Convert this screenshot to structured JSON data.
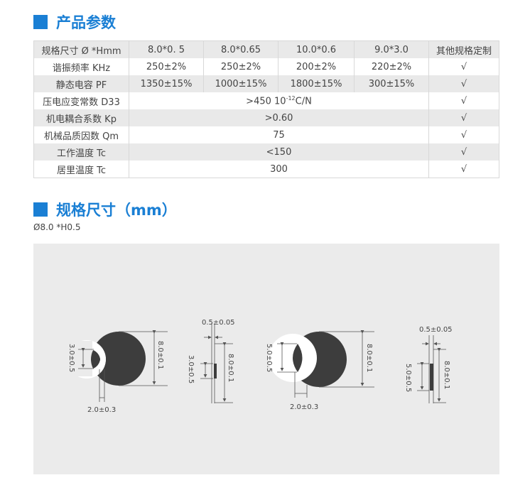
{
  "section1": {
    "title": "产品参数"
  },
  "table": {
    "header": [
      "规格尺寸 Ø *Hmm",
      "8.0*0. 5",
      "8.0*0.65",
      "10.0*0.6",
      "9.0*3.0",
      "其他规格定制"
    ],
    "rows": [
      {
        "label": "谐振频率 KHz",
        "cells": [
          "250±2%",
          "250±2%",
          "200±2%",
          "220±2%"
        ],
        "custom": "√"
      },
      {
        "label": "静态电容 PF",
        "cells": [
          "1350±15%",
          "1000±15%",
          "1800±15%",
          "300±15%"
        ],
        "custom": "√"
      },
      {
        "label": "压电应变常数 D33",
        "value": ">450  10",
        "sup": "-12",
        "unit": "C/N",
        "custom": "√"
      },
      {
        "label": "机电耦合系数 Kp",
        "value": ">0.60",
        "custom": "√"
      },
      {
        "label": "机械品质因数 Qm",
        "value": "75",
        "custom": "√"
      },
      {
        "label": "工作温度 Tc",
        "value": "<150",
        "custom": "√"
      },
      {
        "label": "居里温度 Tc",
        "value": "300",
        "custom": "√"
      }
    ]
  },
  "section2": {
    "title": "规格尺寸（mm）",
    "subtitle": "Ø8.0 *H0.5"
  },
  "diagram": {
    "d1": {
      "dia": "8.0±0.1",
      "notch": "3.0±0.5",
      "gap": "2.0±0.3"
    },
    "s1": {
      "thick": "0.5±0.05",
      "dia": "8.0±0.1",
      "notch": "3.0±0.5"
    },
    "d2": {
      "dia": "8.0±0.1",
      "notch": "5.0±0.5",
      "gap": "2.0±0.3"
    },
    "s2": {
      "thick": "0.5±0.05",
      "dia": "8.0±0.1",
      "notch": "5.0±0.5"
    },
    "colors": {
      "shape": "#3d3d3d",
      "line": "#555555",
      "background": "#ebebeb",
      "accent": "#1a7fd4"
    }
  }
}
